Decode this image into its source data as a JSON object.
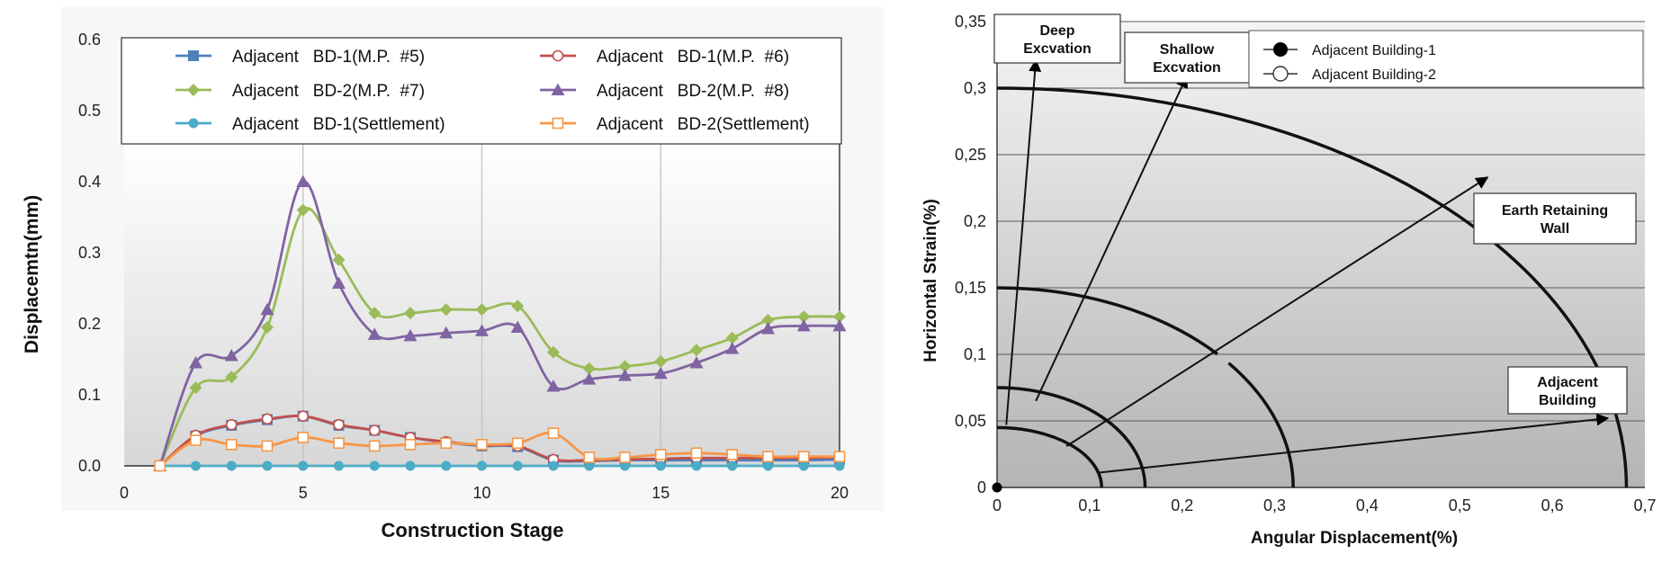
{
  "chart_data": [
    {
      "type": "line",
      "title": "",
      "xlabel": "Construction Stage",
      "ylabel": "Displacemtn(mm)",
      "xlim": [
        0,
        20
      ],
      "ylim": [
        0,
        0.6
      ],
      "xticks": [
        0,
        5,
        10,
        15,
        20
      ],
      "xtick_labels": [
        "0",
        "5",
        "10",
        "15",
        "20"
      ],
      "yticks": [
        0,
        0.1,
        0.2,
        0.3,
        0.4,
        0.5,
        0.6
      ],
      "ytick_labels": [
        "0.0",
        "0.1",
        "0.2",
        "0.3",
        "0.4",
        "0.5",
        "0.6"
      ],
      "grid": "vertical",
      "legend_position": "top",
      "x": [
        1,
        2,
        3,
        4,
        5,
        6,
        7,
        8,
        9,
        10,
        11,
        12,
        13,
        14,
        15,
        16,
        17,
        18,
        19,
        20
      ],
      "series": [
        {
          "name": "Adjacent   BD-1(M.P.  #5)",
          "color": "#4f81bd",
          "marker": "square",
          "values": [
            0,
            0.042,
            0.057,
            0.065,
            0.07,
            0.057,
            0.05,
            0.04,
            0.033,
            0.028,
            0.027,
            0.008,
            0.007,
            0.008,
            0.008,
            0.008,
            0.008,
            0.008,
            0.008,
            0.009
          ]
        },
        {
          "name": "Adjacent   BD-1(M.P.  #6)",
          "color": "#c0504d",
          "marker": "circle-open",
          "values": [
            0,
            0.043,
            0.058,
            0.066,
            0.07,
            0.058,
            0.05,
            0.04,
            0.034,
            0.029,
            0.028,
            0.009,
            0.008,
            0.009,
            0.01,
            0.011,
            0.011,
            0.011,
            0.011,
            0.012
          ]
        },
        {
          "name": "Adjacent   BD-2(M.P.  #7)",
          "color": "#9bbb59",
          "marker": "diamond",
          "values": [
            0,
            0.11,
            0.125,
            0.195,
            0.36,
            0.29,
            0.215,
            0.215,
            0.22,
            0.22,
            0.225,
            0.16,
            0.137,
            0.14,
            0.147,
            0.163,
            0.18,
            0.205,
            0.21,
            0.21
          ]
        },
        {
          "name": "Adjacent   BD-2(M.P.  #8)",
          "color": "#8064a2",
          "marker": "triangle",
          "values": [
            0,
            0.145,
            0.155,
            0.22,
            0.4,
            0.257,
            0.185,
            0.183,
            0.187,
            0.19,
            0.195,
            0.112,
            0.122,
            0.127,
            0.13,
            0.145,
            0.165,
            0.193,
            0.197,
            0.197
          ]
        },
        {
          "name": "Adjacent   BD-1(Settlement)",
          "color": "#4bacc6",
          "marker": "circle",
          "values": [
            0,
            0,
            0,
            0,
            0,
            0,
            0,
            0,
            0,
            0,
            0,
            0,
            0,
            0,
            0,
            0,
            0,
            0,
            0,
            0
          ]
        },
        {
          "name": "Adjacent   BD-2(Settlement)",
          "color": "#f79646",
          "marker": "square-open",
          "values": [
            0,
            0.036,
            0.03,
            0.028,
            0.04,
            0.032,
            0.028,
            0.03,
            0.032,
            0.03,
            0.032,
            0.046,
            0.012,
            0.012,
            0.016,
            0.018,
            0.016,
            0.013,
            0.013,
            0.013
          ]
        }
      ]
    },
    {
      "type": "scatter",
      "title": "",
      "xlabel": "Angular Displacement(%)",
      "ylabel": "Horizontal Strain(%)",
      "xlim": [
        0,
        0.7
      ],
      "ylim": [
        0,
        0.35
      ],
      "xticks": [
        0,
        0.1,
        0.2,
        0.3,
        0.4,
        0.5,
        0.6,
        0.7
      ],
      "xtick_labels": [
        "0",
        "0,1",
        "0,2",
        "0,3",
        "0,4",
        "0,5",
        "0,6",
        "0,7"
      ],
      "yticks": [
        0,
        0.05,
        0.1,
        0.15,
        0.2,
        0.25,
        0.3,
        0.35
      ],
      "ytick_labels": [
        "0",
        "0,05",
        "0,1",
        "0,15",
        "0,2",
        "0,25",
        "0,3",
        "0,35"
      ],
      "grid": "horizontal",
      "legend_position": "top-right",
      "series": [
        {
          "name": "Adjacent Building-1",
          "marker": "filled-circle",
          "points": [
            [
              0,
              0
            ]
          ]
        },
        {
          "name": "Adjacent Building-2",
          "marker": "open-circle",
          "points": []
        }
      ],
      "damage_boundaries": [
        {
          "h0": 0.045,
          "a0": 0.113,
          "style": "solid"
        },
        {
          "h0": 0.075,
          "a0": 0.16,
          "style": "solid"
        },
        {
          "h0": 0.15,
          "a0": 0.32,
          "style": "dashed"
        },
        {
          "h0": 0.3,
          "a0": 0.68,
          "style": "solid"
        }
      ],
      "annotations": [
        {
          "label": "Deep Excvation",
          "lines": [
            "Deep",
            "Excvation"
          ],
          "from": [
            0.01,
            0.047
          ],
          "to": [
            0.042,
            0.321
          ]
        },
        {
          "label": "Shallow Excvation",
          "lines": [
            "Shallow",
            "Excvation"
          ],
          "from": [
            0.042,
            0.065
          ],
          "to": [
            0.205,
            0.309
          ]
        },
        {
          "label": "Earth Retaining Wall",
          "lines": [
            "Earth Retaining",
            "Wall"
          ],
          "from": [
            0.075,
            0.031
          ],
          "to": [
            0.53,
            0.233
          ]
        },
        {
          "label": "Adjacent Building",
          "lines": [
            "Adjacent",
            "Building"
          ],
          "from": [
            0.108,
            0.011
          ],
          "to": [
            0.66,
            0.052
          ]
        }
      ]
    }
  ]
}
